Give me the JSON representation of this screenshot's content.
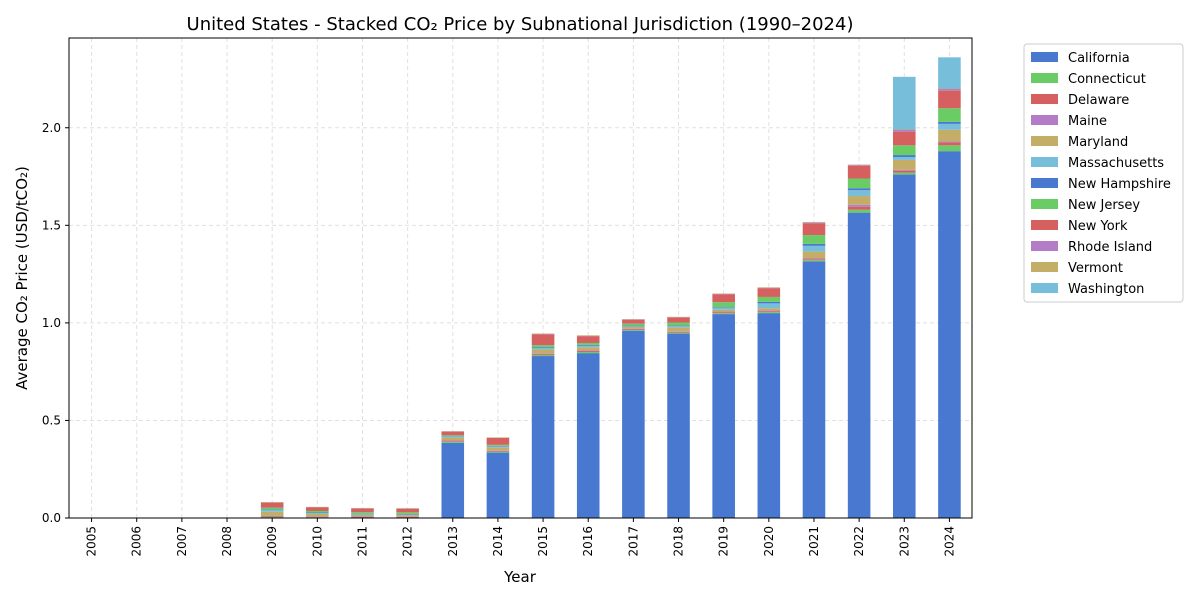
{
  "chart_data": {
    "type": "bar",
    "stacked": true,
    "title": "United States - Stacked CO₂ Price by Subnational Jurisdiction (1990–2024)",
    "xlabel": "Year",
    "ylabel": "Average CO₂ Price (USD/tCO₂)",
    "ylim": [
      0,
      2.46
    ],
    "yticks": [
      "0.0",
      "0.5",
      "1.0",
      "1.5",
      "2.0"
    ],
    "grid": true,
    "legend_position": "outside-right",
    "categories": [
      "2005",
      "2006",
      "2007",
      "2008",
      "2009",
      "2010",
      "2011",
      "2012",
      "2013",
      "2014",
      "2015",
      "2016",
      "2017",
      "2018",
      "2019",
      "2020",
      "2021",
      "2022",
      "2023",
      "2024"
    ],
    "series": [
      {
        "name": "California",
        "color": "#4878d0",
        "values": [
          0,
          0,
          0,
          0,
          0,
          0,
          0,
          0,
          0.385,
          0.335,
          0.83,
          0.845,
          0.96,
          0.945,
          1.045,
          1.05,
          1.315,
          1.565,
          1.76,
          1.88
        ]
      },
      {
        "name": "Connecticut",
        "color": "#6acc64",
        "values": [
          0,
          0,
          0,
          0,
          0.005,
          0.004,
          0.003,
          0.003,
          0.005,
          0.005,
          0.006,
          0.006,
          0.003,
          0.005,
          0.005,
          0.005,
          0.006,
          0.015,
          0.01,
          0.03
        ]
      },
      {
        "name": "Delaware",
        "color": "#d65f5f",
        "values": [
          0,
          0,
          0,
          0,
          0.004,
          0.003,
          0.003,
          0.002,
          0.004,
          0.004,
          0.005,
          0.005,
          0.004,
          0.004,
          0.005,
          0.005,
          0.005,
          0.015,
          0.01,
          0.015
        ]
      },
      {
        "name": "Maine",
        "color": "#b47cc7",
        "values": [
          0,
          0,
          0,
          0,
          0.003,
          0.002,
          0.002,
          0.002,
          0.003,
          0.003,
          0.003,
          0.003,
          0.002,
          0.003,
          0.003,
          0.003,
          0.004,
          0.01,
          0.005,
          0.005
        ]
      },
      {
        "name": "Maryland",
        "color": "#c4ad66",
        "values": [
          0,
          0,
          0,
          0,
          0.02,
          0.012,
          0.008,
          0.008,
          0.015,
          0.015,
          0.02,
          0.016,
          0.01,
          0.02,
          0.01,
          0.012,
          0.035,
          0.045,
          0.05,
          0.06
        ]
      },
      {
        "name": "Massachusetts",
        "color": "#77bedb",
        "values": [
          0,
          0,
          0,
          0,
          0.008,
          0.005,
          0.004,
          0.004,
          0.005,
          0.006,
          0.008,
          0.008,
          0.005,
          0.008,
          0.01,
          0.025,
          0.03,
          0.03,
          0.015,
          0.03
        ]
      },
      {
        "name": "New Hampshire",
        "color": "#4878d0",
        "values": [
          0,
          0,
          0,
          0,
          0.003,
          0.002,
          0.002,
          0.002,
          0.002,
          0.002,
          0.004,
          0.004,
          0.002,
          0.002,
          0.003,
          0.008,
          0.01,
          0.01,
          0.01,
          0.01
        ]
      },
      {
        "name": "New Jersey",
        "color": "#6acc64",
        "values": [
          0,
          0,
          0,
          0,
          0.01,
          0.008,
          0.008,
          0.008,
          0.005,
          0.005,
          0.01,
          0.01,
          0.01,
          0.015,
          0.025,
          0.025,
          0.045,
          0.05,
          0.05,
          0.07
        ]
      },
      {
        "name": "New York",
        "color": "#d65f5f",
        "values": [
          0,
          0,
          0,
          0,
          0.025,
          0.018,
          0.018,
          0.018,
          0.018,
          0.035,
          0.055,
          0.035,
          0.02,
          0.025,
          0.04,
          0.045,
          0.06,
          0.065,
          0.07,
          0.09
        ]
      },
      {
        "name": "Rhode Island",
        "color": "#b47cc7",
        "values": [
          0,
          0,
          0,
          0,
          0.003,
          0.002,
          0.002,
          0.002,
          0.002,
          0.002,
          0.003,
          0.003,
          0.002,
          0.003,
          0.003,
          0.003,
          0.005,
          0.005,
          0.01,
          0.01
        ]
      },
      {
        "name": "Vermont",
        "color": "#c4ad66",
        "values": [
          0,
          0,
          0,
          0,
          0.001,
          0.001,
          0.001,
          0.001,
          0.001,
          0.001,
          0.001,
          0.001,
          0.001,
          0.001,
          0.001,
          0.001,
          0.001,
          0.001,
          0.001,
          0.001
        ]
      },
      {
        "name": "Washington",
        "color": "#77bedb",
        "values": [
          0,
          0,
          0,
          0,
          0,
          0,
          0,
          0,
          0,
          0,
          0,
          0,
          0,
          0,
          0,
          0,
          0,
          0,
          0.27,
          0.16
        ]
      }
    ]
  }
}
